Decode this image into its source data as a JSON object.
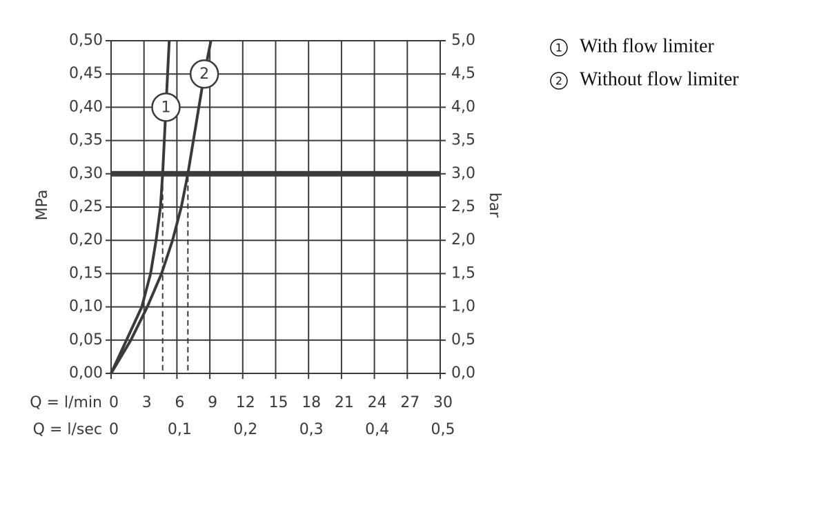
{
  "chart_data": {
    "type": "line",
    "x_label": "Q = l/min",
    "x2_label": "Q = l/sec",
    "y_label": "MPa",
    "y2_label": "bar",
    "xlim": [
      0,
      30
    ],
    "xticks": [
      0,
      3,
      6,
      9,
      12,
      15,
      18,
      21,
      24,
      27,
      30
    ],
    "x2lim": [
      0,
      0.5
    ],
    "x2ticks": [
      0,
      {
        "value": 0.1,
        "label": "0,1"
      },
      {
        "value": 0.2,
        "label": "0,2"
      },
      {
        "value": 0.3,
        "label": "0,3"
      },
      {
        "value": 0.4,
        "label": "0,4"
      },
      {
        "value": 0.5,
        "label": "0,5"
      }
    ],
    "ylim": [
      0,
      0.5
    ],
    "yticks": [
      {
        "value": 0,
        "label": "0,00"
      },
      {
        "value": 0.05,
        "label": "0,05"
      },
      {
        "value": 0.1,
        "label": "0,10"
      },
      {
        "value": 0.15,
        "label": "0,15"
      },
      {
        "value": 0.2,
        "label": "0,20"
      },
      {
        "value": 0.25,
        "label": "0,25"
      },
      {
        "value": 0.3,
        "label": "0,30"
      },
      {
        "value": 0.35,
        "label": "0,35"
      },
      {
        "value": 0.4,
        "label": "0,40"
      },
      {
        "value": 0.45,
        "label": "0,45"
      },
      {
        "value": 0.5,
        "label": "0,50"
      }
    ],
    "y2lim": [
      0,
      5
    ],
    "y2ticks": [
      {
        "value": 0,
        "label": "0,0"
      },
      {
        "value": 0.5,
        "label": "0,5"
      },
      {
        "value": 1,
        "label": "1,0"
      },
      {
        "value": 1.5,
        "label": "1,5"
      },
      {
        "value": 2,
        "label": "2,0"
      },
      {
        "value": 2.5,
        "label": "2,5"
      },
      {
        "value": 3,
        "label": "3,0"
      },
      {
        "value": 3.5,
        "label": "3,5"
      },
      {
        "value": 4,
        "label": "4,0"
      },
      {
        "value": 4.5,
        "label": "4,5"
      },
      {
        "value": 5,
        "label": "5,0"
      }
    ],
    "grid": true,
    "color": "#3a3a3a",
    "reference_line": 0.3,
    "series": [
      {
        "name": "With flow limiter",
        "badge": "1",
        "color": "#3a3a3a",
        "x": [
          0,
          1.4,
          2.8,
          3.6,
          4.1,
          4.5,
          4.7,
          5.0,
          5.3
        ],
        "values": [
          0,
          0.05,
          0.1,
          0.15,
          0.2,
          0.25,
          0.3,
          0.4,
          0.5
        ]
      },
      {
        "name": "Without flow limiter",
        "badge": "2",
        "color": "#3a3a3a",
        "x": [
          0,
          1.8,
          3.3,
          4.6,
          5.6,
          6.4,
          7.0,
          8.0,
          8.5,
          9.1
        ],
        "values": [
          0,
          0.05,
          0.1,
          0.15,
          0.2,
          0.25,
          0.3,
          0.4,
          0.45,
          0.5
        ]
      }
    ]
  }
}
